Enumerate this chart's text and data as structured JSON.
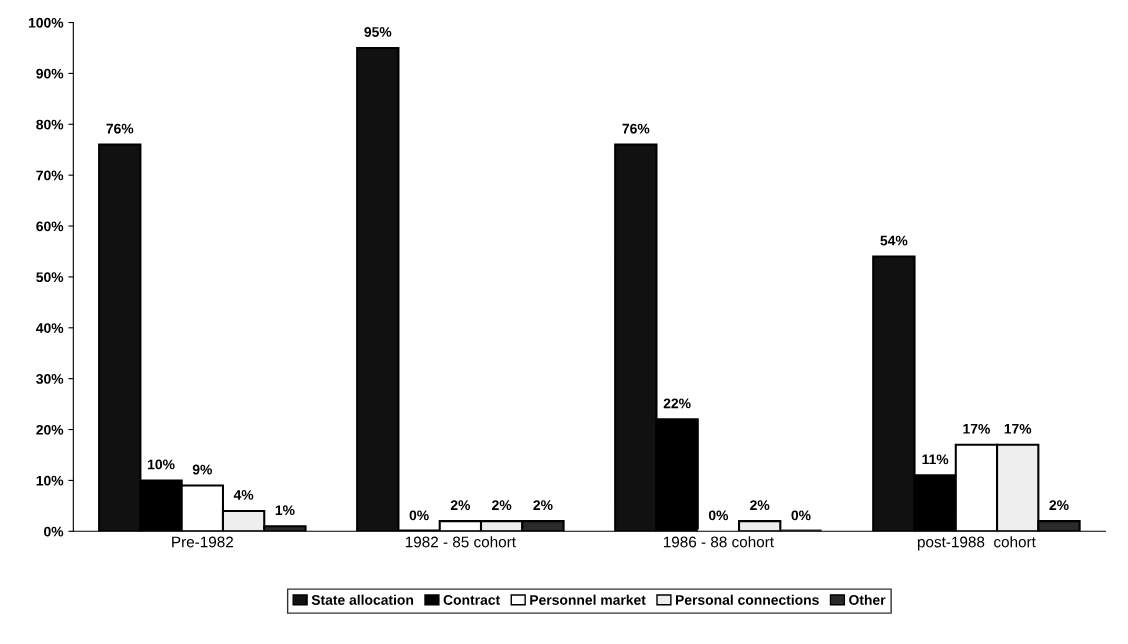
{
  "chart_data": {
    "type": "bar",
    "categories": [
      "Pre-1982",
      "1982 - 85 cohort",
      "1986 - 88 cohort",
      "post-1988  cohort"
    ],
    "series": [
      {
        "name": "State allocation",
        "color": "#111111",
        "values": [
          76,
          95,
          76,
          54
        ],
        "value_labels": [
          "76%",
          "95%",
          "76%",
          "54%"
        ]
      },
      {
        "name": "Contract",
        "color": "#000000",
        "values": [
          10,
          0,
          22,
          11
        ],
        "value_labels": [
          "10%",
          "0%",
          "22%",
          "11%"
        ]
      },
      {
        "name": "Personnel market",
        "color": "#ffffff",
        "values": [
          9,
          2,
          0,
          17
        ],
        "value_labels": [
          "9%",
          "2%",
          "0%",
          "17%"
        ]
      },
      {
        "name": "Personal connections",
        "color": "#eeeeee",
        "values": [
          4,
          2,
          2,
          17
        ],
        "value_labels": [
          "4%",
          "2%",
          "2%",
          "17%"
        ]
      },
      {
        "name": "Other",
        "color": "#2a2a2a",
        "values": [
          1,
          2,
          0,
          2
        ],
        "value_labels": [
          "1%",
          "2%",
          "0%",
          "2%"
        ]
      }
    ],
    "ylim": [
      0,
      100
    ],
    "yticks": [
      {
        "value": 0,
        "label": "0%"
      },
      {
        "value": 10,
        "label": "10%"
      },
      {
        "value": 20,
        "label": "20%"
      },
      {
        "value": 30,
        "label": "30%"
      },
      {
        "value": 40,
        "label": "40%"
      },
      {
        "value": 50,
        "label": "50%"
      },
      {
        "value": 60,
        "label": "60%"
      },
      {
        "value": 70,
        "label": "70%"
      },
      {
        "value": 80,
        "label": "80%"
      },
      {
        "value": 90,
        "label": "90%"
      },
      {
        "value": 100,
        "label": "100%"
      }
    ],
    "grid": false,
    "legend": "bottom"
  }
}
